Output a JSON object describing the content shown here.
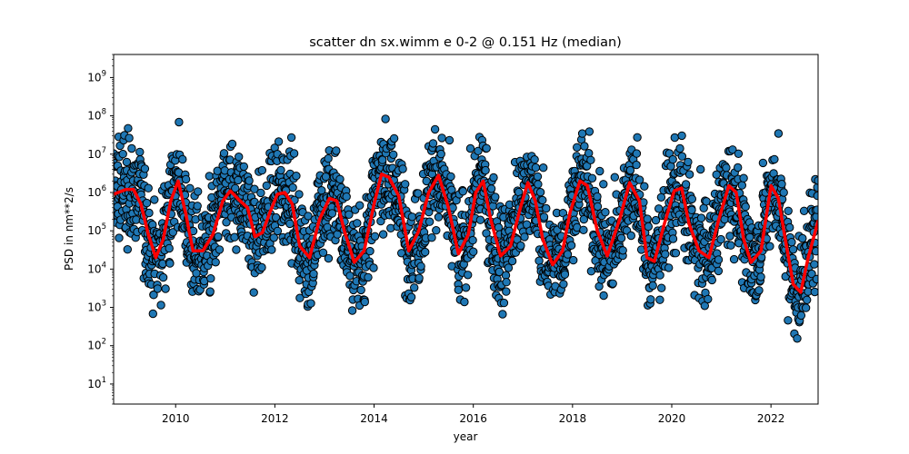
{
  "chart_data": {
    "type": "scatter",
    "title": "scatter dn sx.wimm e 0-2 @ 0.151 Hz (median)",
    "xlabel": "year",
    "ylabel": "PSD in nm**2/s",
    "xlim": [
      2008.75,
      2022.95
    ],
    "ylim": [
      3,
      4000000000
    ],
    "yscale": "log",
    "grid": false,
    "x_ticks": [
      2010,
      2012,
      2014,
      2016,
      2018,
      2020,
      2022
    ],
    "x_tick_labels": [
      "2010",
      "2012",
      "2014",
      "2016",
      "2018",
      "2020",
      "2022"
    ],
    "y_ticks": [
      10,
      100,
      1000,
      10000,
      100000,
      1000000,
      10000000,
      100000000,
      1000000000
    ],
    "y_tick_labels": [
      {
        "base": "10",
        "exp": "1"
      },
      {
        "base": "10",
        "exp": "2"
      },
      {
        "base": "10",
        "exp": "3"
      },
      {
        "base": "10",
        "exp": "4"
      },
      {
        "base": "10",
        "exp": "5"
      },
      {
        "base": "10",
        "exp": "6"
      },
      {
        "base": "10",
        "exp": "7"
      },
      {
        "base": "10",
        "exp": "8"
      },
      {
        "base": "10",
        "exp": "9"
      }
    ],
    "point_color": "#1f77b4",
    "point_edge_color": "#000000",
    "median_color": "#ff0000",
    "median_line": {
      "x": [
        2008.75,
        2009.0,
        2009.15,
        2009.3,
        2009.45,
        2009.6,
        2009.75,
        2009.9,
        2010.05,
        2010.2,
        2010.35,
        2010.55,
        2010.75,
        2010.95,
        2011.1,
        2011.3,
        2011.45,
        2011.6,
        2011.75,
        2011.9,
        2012.05,
        2012.2,
        2012.35,
        2012.5,
        2012.7,
        2012.9,
        2013.1,
        2013.25,
        2013.4,
        2013.6,
        2013.8,
        2014.0,
        2014.15,
        2014.3,
        2014.5,
        2014.7,
        2014.9,
        2015.1,
        2015.3,
        2015.5,
        2015.7,
        2015.9,
        2016.05,
        2016.2,
        2016.35,
        2016.55,
        2016.75,
        2016.95,
        2017.1,
        2017.25,
        2017.4,
        2017.6,
        2017.8,
        2017.95,
        2018.15,
        2018.3,
        2018.5,
        2018.7,
        2018.95,
        2019.15,
        2019.35,
        2019.5,
        2019.65,
        2019.85,
        2020.05,
        2020.2,
        2020.35,
        2020.55,
        2020.75,
        2020.95,
        2021.15,
        2021.3,
        2021.45,
        2021.6,
        2021.8,
        2022.0,
        2022.15,
        2022.3,
        2022.45,
        2022.6,
        2022.75,
        2022.95
      ],
      "y": [
        900000,
        1200000,
        1200000,
        500000,
        80000,
        20000,
        60000,
        600000,
        2000000,
        300000,
        30000,
        30000,
        80000,
        600000,
        1100000,
        600000,
        400000,
        70000,
        90000,
        300000,
        900000,
        1000000,
        500000,
        40000,
        20000,
        200000,
        700000,
        600000,
        100000,
        15000,
        30000,
        500000,
        3000000,
        2500000,
        800000,
        30000,
        100000,
        1000000,
        2800000,
        400000,
        25000,
        80000,
        1000000,
        2000000,
        200000,
        22000,
        40000,
        400000,
        1800000,
        600000,
        60000,
        13000,
        30000,
        300000,
        2000000,
        1500000,
        100000,
        22000,
        200000,
        1800000,
        600000,
        20000,
        16000,
        150000,
        1100000,
        1300000,
        150000,
        30000,
        20000,
        200000,
        1500000,
        1000000,
        60000,
        15000,
        30000,
        1500000,
        700000,
        50000,
        4000,
        2500,
        20000,
        180000
      ]
    }
  }
}
